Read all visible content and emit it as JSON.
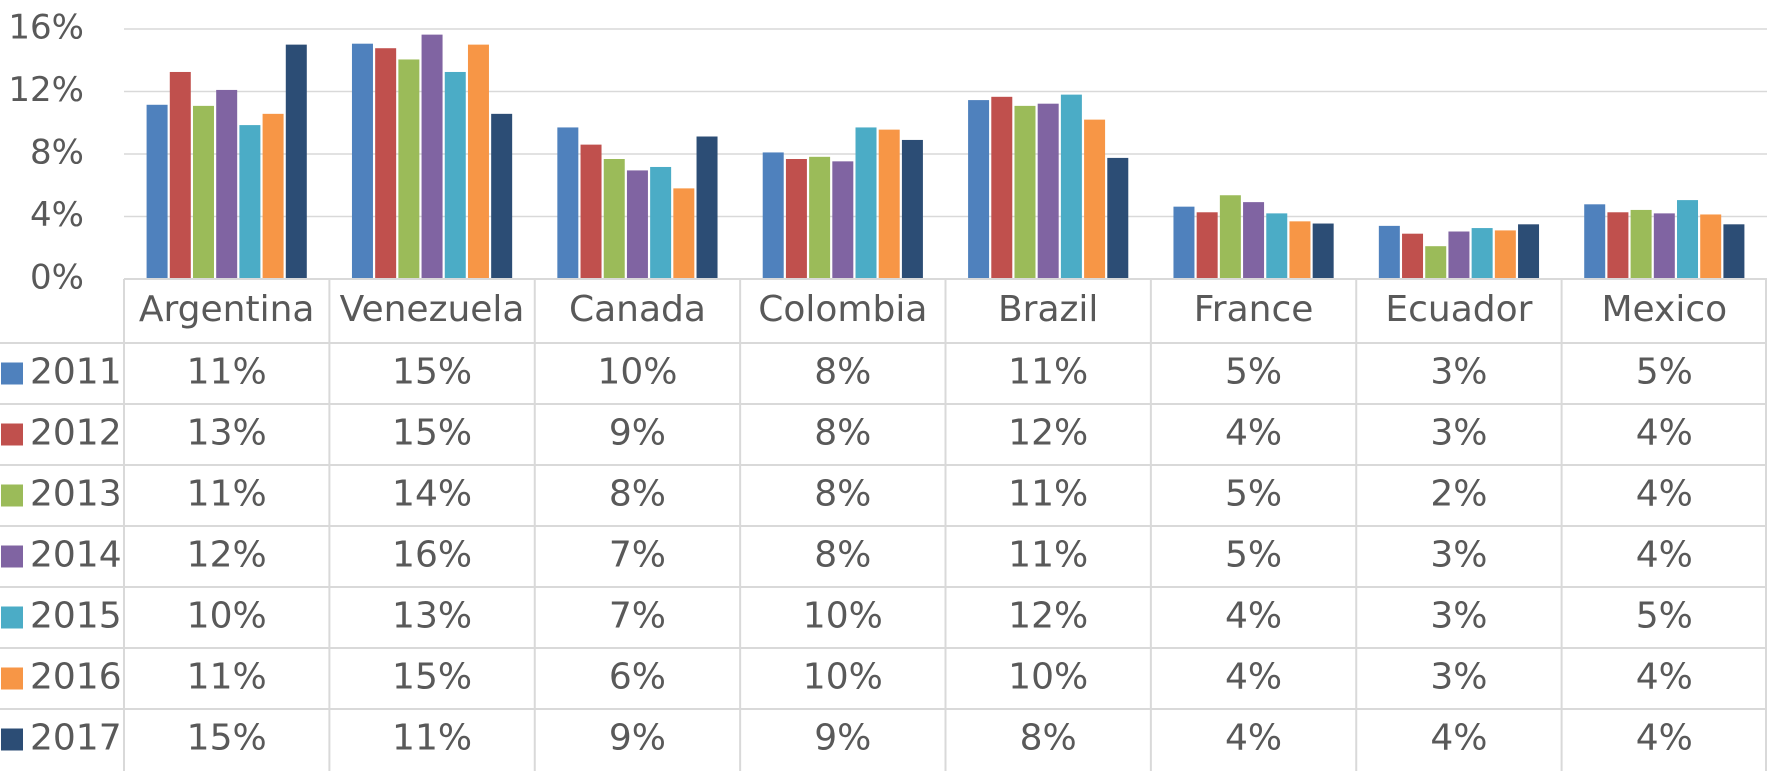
{
  "chart_data": {
    "type": "bar",
    "categories": [
      "Argentina",
      "Venezuela",
      "Canada",
      "Colombia",
      "Brazil",
      "France",
      "Ecuador",
      "Mexico"
    ],
    "series": [
      {
        "name": "2011",
        "color": "#4f81bd",
        "values": [
          11.15,
          15.06,
          9.7,
          8.1,
          11.45,
          4.63,
          3.4,
          4.78
        ],
        "value_labels": [
          "11%",
          "15%",
          "10%",
          "8%",
          "11%",
          "5%",
          "3%",
          "5%"
        ]
      },
      {
        "name": "2012",
        "color": "#c0504d",
        "values": [
          13.25,
          14.77,
          8.6,
          7.68,
          11.66,
          4.27,
          2.9,
          4.27
        ],
        "value_labels": [
          "13%",
          "15%",
          "9%",
          "8%",
          "12%",
          "4%",
          "3%",
          "4%"
        ]
      },
      {
        "name": "2013",
        "color": "#9bbb59",
        "values": [
          11.08,
          14.05,
          7.68,
          7.82,
          11.08,
          5.36,
          2.1,
          4.42
        ],
        "value_labels": [
          "11%",
          "14%",
          "8%",
          "8%",
          "11%",
          "5%",
          "2%",
          "4%"
        ]
      },
      {
        "name": "2014",
        "color": "#8064a2",
        "values": [
          12.1,
          15.64,
          6.95,
          7.53,
          11.22,
          4.92,
          3.04,
          4.2
        ],
        "value_labels": [
          "12%",
          "16%",
          "7%",
          "8%",
          "11%",
          "5%",
          "3%",
          "4%"
        ]
      },
      {
        "name": "2015",
        "color": "#4bacc6",
        "values": [
          9.85,
          13.25,
          7.17,
          9.7,
          11.8,
          4.2,
          3.26,
          5.05
        ],
        "value_labels": [
          "10%",
          "13%",
          "7%",
          "10%",
          "12%",
          "4%",
          "3%",
          "5%"
        ]
      },
      {
        "name": "2016",
        "color": "#f79646",
        "values": [
          10.57,
          15.0,
          5.8,
          9.56,
          10.2,
          3.69,
          3.11,
          4.13
        ],
        "value_labels": [
          "11%",
          "15%",
          "6%",
          "10%",
          "10%",
          "4%",
          "3%",
          "4%"
        ]
      },
      {
        "name": "2017",
        "color": "#2c4d75",
        "values": [
          15.0,
          10.57,
          9.12,
          8.9,
          7.75,
          3.55,
          3.5,
          3.5
        ],
        "value_labels": [
          "15%",
          "11%",
          "9%",
          "9%",
          "8%",
          "4%",
          "4%",
          "4%"
        ]
      }
    ],
    "ylim": [
      0,
      16
    ],
    "yticks": [
      {
        "value": 0,
        "label": "0%"
      },
      {
        "value": 4,
        "label": "4%"
      },
      {
        "value": 8,
        "label": "8%"
      },
      {
        "value": 12,
        "label": "12%"
      },
      {
        "value": 16,
        "label": "16%"
      }
    ],
    "grid": true
  }
}
